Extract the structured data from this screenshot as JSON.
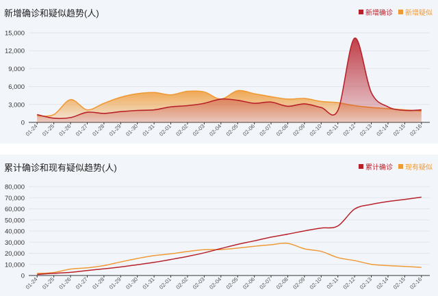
{
  "colors": {
    "confirmed": "#b8202a",
    "suspected": "#f09a36"
  },
  "chart_data": [
    {
      "type": "area",
      "title": "新增确诊和疑似趋势(人)",
      "legend": "top-right",
      "grid": true,
      "categories": [
        "01-24",
        "01-25",
        "01-26",
        "01-27",
        "01-28",
        "01-29",
        "01-30",
        "01-31",
        "02-01",
        "02-02",
        "02-03",
        "02-04",
        "02-05",
        "02-06",
        "02-07",
        "02-08",
        "02-09",
        "02-10",
        "02-11",
        "02-12",
        "02-13",
        "02-14",
        "02-15",
        "02-16"
      ],
      "ylim": [
        0,
        15000
      ],
      "yticks": [
        0,
        3000,
        6000,
        9000,
        12000,
        15000
      ],
      "ytick_labels": [
        "0",
        "3,000",
        "6,000",
        "9,000",
        "12,000",
        "15,000"
      ],
      "series": [
        {
          "name": "新增确诊",
          "color": "#b8202a",
          "values": [
            1300,
            700,
            800,
            1700,
            1500,
            1800,
            2000,
            2100,
            2600,
            2800,
            3200,
            3900,
            3700,
            3200,
            3400,
            2700,
            3100,
            2500,
            2000,
            14100,
            5000,
            2600,
            2000,
            2100
          ]
        },
        {
          "name": "新增疑似",
          "color": "#f09a36",
          "values": [
            1100,
            1300,
            3800,
            2100,
            3200,
            4200,
            4800,
            5000,
            4600,
            5200,
            5100,
            3900,
            5300,
            4800,
            4300,
            3900,
            4000,
            3500,
            3300,
            2800,
            2500,
            2300,
            2100,
            1900
          ]
        }
      ]
    },
    {
      "type": "line",
      "title": "累计确诊和现有疑似趋势(人)",
      "legend": "top-right",
      "grid": true,
      "categories": [
        "01-24",
        "01-25",
        "01-26",
        "01-27",
        "01-28",
        "01-29",
        "01-30",
        "01-31",
        "02-01",
        "02-02",
        "02-03",
        "02-04",
        "02-05",
        "02-06",
        "02-07",
        "02-08",
        "02-09",
        "02-10",
        "02-11",
        "02-12",
        "02-13",
        "02-14",
        "02-15",
        "02-16"
      ],
      "ylim": [
        0,
        80000
      ],
      "yticks": [
        0,
        10000,
        20000,
        30000,
        40000,
        50000,
        60000,
        70000,
        80000
      ],
      "ytick_labels": [
        "0",
        "10,000",
        "20,000",
        "30,000",
        "40,000",
        "50,000",
        "60,000",
        "70,000",
        "80,000"
      ],
      "series": [
        {
          "name": "累计确诊",
          "color": "#b8202a",
          "values": [
            900,
            2000,
            2800,
            4500,
            6000,
            7700,
            9700,
            11800,
            14400,
            17200,
            20400,
            24300,
            28000,
            31200,
            34500,
            37200,
            40200,
            42700,
            44600,
            59800,
            64000,
            66600,
            68500,
            70500
          ]
        },
        {
          "name": "现有疑似",
          "color": "#f09a36",
          "values": [
            1900,
            2700,
            5800,
            6900,
            8900,
            12200,
            15300,
            17900,
            19500,
            21600,
            23200,
            23300,
            24700,
            26300,
            27700,
            28900,
            24000,
            21700,
            16100,
            13400,
            10100,
            8900,
            8200,
            7300
          ]
        }
      ]
    }
  ]
}
